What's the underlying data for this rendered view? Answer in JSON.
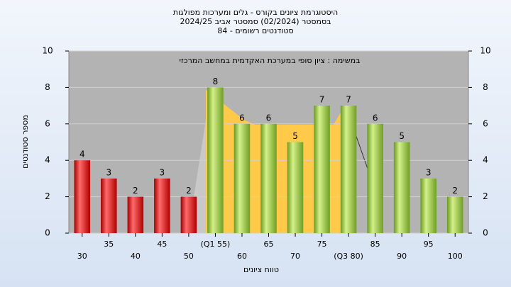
{
  "chart_data": {
    "type": "bar",
    "title": "היסטוגרמת ציונים בקורס - גלים ומערכות מפולגות",
    "subtitle": "בסמסטר  (02/2024)  סמסטר אביב 2024/25",
    "subtitle2": "סטודנטים רשומים - 84",
    "annotation": "במשימה : ציון סופי במערכת האקדמית במחשב המרכזי",
    "x_label": "טווח ציונים",
    "y_label": "מספר סטודנטים",
    "categories": [
      "30",
      "35",
      "40",
      "45",
      "50",
      "(Q1 55)",
      "60",
      "65",
      "70",
      "75",
      "(Q3 80)",
      "85",
      "90",
      "95",
      "100"
    ],
    "values": [
      4,
      3,
      2,
      3,
      2,
      8,
      6,
      6,
      5,
      7,
      7,
      6,
      5,
      3,
      2
    ],
    "colors": [
      "red",
      "red",
      "red",
      "red",
      "red",
      "green",
      "green",
      "green",
      "green",
      "green",
      "green",
      "green",
      "green",
      "green",
      "green"
    ],
    "ylim": [
      0,
      10
    ],
    "yticks": [
      0,
      2,
      4,
      6,
      8,
      10
    ],
    "grid": true
  }
}
